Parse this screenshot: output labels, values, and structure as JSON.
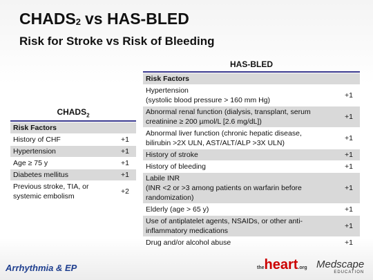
{
  "title": {
    "main": "CHADS",
    "sub": "2",
    "rest": "vs HAS-BLED"
  },
  "subtitle": "Risk for Stroke vs Risk of Bleeding",
  "chads2": {
    "heading": {
      "main": "CHADS",
      "sub": "2"
    },
    "column_header": "Risk Factors",
    "rows": [
      {
        "lines": [
          "History of CHF"
        ],
        "points": "+1"
      },
      {
        "lines": [
          "Hypertension"
        ],
        "points": "+1"
      },
      {
        "lines": [
          "Age ≥ 75 y"
        ],
        "points": "+1"
      },
      {
        "lines": [
          "Diabetes mellitus"
        ],
        "points": "+1"
      },
      {
        "lines": [
          "Previous stroke, TIA, or",
          "systemic embolism"
        ],
        "points": "+2"
      }
    ]
  },
  "hasbled": {
    "heading": "HAS-BLED",
    "column_header": "Risk Factors",
    "rows": [
      {
        "lines": [
          "Hypertension",
          "(systolic blood pressure > 160 mm Hg)"
        ],
        "points": "+1"
      },
      {
        "lines": [
          "Abnormal renal function (dialysis, transplant, serum",
          "creatinine ≥ 200 µmol/L [2.6 mg/dL])"
        ],
        "points": "+1"
      },
      {
        "lines": [
          "Abnormal liver function (chronic hepatic disease,",
          "bilirubin >2X ULN, AST/ALT/ALP >3X ULN)"
        ],
        "points": "+1"
      },
      {
        "lines": [
          "History of stroke"
        ],
        "points": "+1"
      },
      {
        "lines": [
          "History of bleeding"
        ],
        "points": "+1"
      },
      {
        "lines": [
          "Labile INR",
          "(INR <2 or >3 among patients on warfarin before",
          "randomization)"
        ],
        "points": "+1"
      },
      {
        "lines": [
          "Elderly (age > 65 y)"
        ],
        "points": "+1"
      },
      {
        "lines": [
          "Use of antiplatelet agents, NSAIDs, or other anti-",
          "inflammatory medications"
        ],
        "points": "+1"
      },
      {
        "lines": [
          "Drug and/or alcohol abuse"
        ],
        "points": "+1"
      }
    ]
  },
  "footer": {
    "left_logo": "Arrhythmia & EP",
    "heart_logo": "heart",
    "heart_prefix": "the",
    "heart_suffix": ".org",
    "medscape_logo": "Medscape",
    "medscape_sub": "EDUCATION"
  }
}
